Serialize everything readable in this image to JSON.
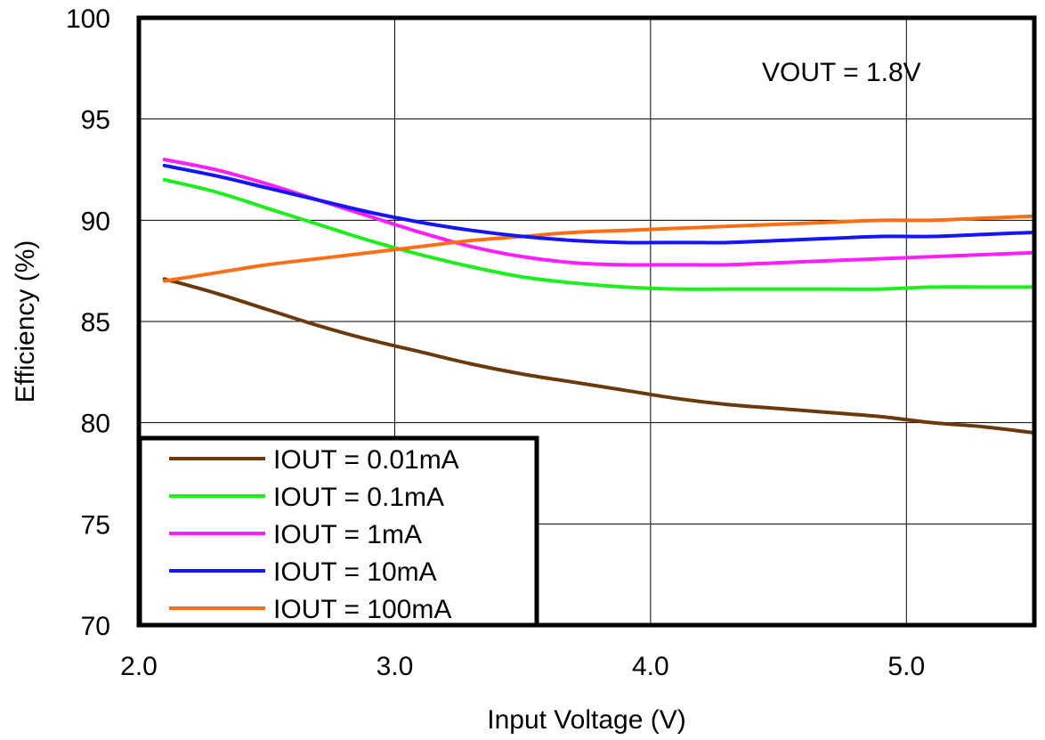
{
  "chart_data": {
    "type": "line",
    "xlabel": "Input Voltage (V)",
    "ylabel": "Efficiency (%)",
    "xlim": [
      2.0,
      5.5
    ],
    "ylim": [
      70,
      100
    ],
    "x_ticks": [
      "2.0",
      "3.0",
      "4.0",
      "5.0"
    ],
    "x_tick_values": [
      2.0,
      3.0,
      4.0,
      5.0
    ],
    "y_ticks": [
      "70",
      "75",
      "80",
      "85",
      "90",
      "95",
      "100"
    ],
    "y_tick_values": [
      70,
      75,
      80,
      85,
      90,
      95,
      100
    ],
    "grid": true,
    "legend_position": "bottom-left",
    "annotation": "VOUT = 1.8V",
    "series": [
      {
        "name": "IOUT = 0.01mA",
        "color": "#6b3a0c",
        "x": [
          2.1,
          2.3,
          2.5,
          2.7,
          2.9,
          3.1,
          3.3,
          3.5,
          3.7,
          3.9,
          4.1,
          4.3,
          4.5,
          4.7,
          4.9,
          5.1,
          5.3,
          5.5
        ],
        "y": [
          87.1,
          86.4,
          85.6,
          84.8,
          84.1,
          83.5,
          82.9,
          82.4,
          82.0,
          81.6,
          81.2,
          80.9,
          80.7,
          80.5,
          80.3,
          80.0,
          79.8,
          79.5
        ]
      },
      {
        "name": "IOUT = 0.1mA",
        "color": "#1eee1e",
        "x": [
          2.1,
          2.3,
          2.5,
          2.7,
          2.9,
          3.1,
          3.3,
          3.5,
          3.7,
          3.9,
          4.1,
          4.3,
          4.5,
          4.7,
          4.9,
          5.1,
          5.3,
          5.5
        ],
        "y": [
          92.0,
          91.4,
          90.6,
          89.8,
          89.0,
          88.3,
          87.7,
          87.2,
          86.9,
          86.7,
          86.6,
          86.6,
          86.6,
          86.6,
          86.6,
          86.7,
          86.7,
          86.7
        ]
      },
      {
        "name": "IOUT = 1mA",
        "color": "#ff1eff",
        "x": [
          2.1,
          2.3,
          2.5,
          2.7,
          2.9,
          3.1,
          3.3,
          3.5,
          3.7,
          3.9,
          4.1,
          4.3,
          4.5,
          4.7,
          4.9,
          5.1,
          5.3,
          5.5
        ],
        "y": [
          93.0,
          92.5,
          91.8,
          91.0,
          90.2,
          89.4,
          88.7,
          88.2,
          87.9,
          87.8,
          87.8,
          87.8,
          87.9,
          88.0,
          88.1,
          88.2,
          88.3,
          88.4
        ]
      },
      {
        "name": "IOUT = 10mA",
        "color": "#1414ff",
        "x": [
          2.1,
          2.3,
          2.5,
          2.7,
          2.9,
          3.1,
          3.3,
          3.5,
          3.7,
          3.9,
          4.1,
          4.3,
          4.5,
          4.7,
          4.9,
          5.1,
          5.3,
          5.5
        ],
        "y": [
          92.7,
          92.2,
          91.6,
          91.0,
          90.4,
          89.9,
          89.5,
          89.2,
          89.0,
          88.9,
          88.9,
          88.9,
          89.0,
          89.1,
          89.2,
          89.2,
          89.3,
          89.4
        ]
      },
      {
        "name": "IOUT = 100mA",
        "color": "#ff6e14",
        "x": [
          2.1,
          2.3,
          2.5,
          2.7,
          2.9,
          3.1,
          3.3,
          3.5,
          3.7,
          3.9,
          4.1,
          4.3,
          4.5,
          4.7,
          4.9,
          5.1,
          5.3,
          5.5
        ],
        "y": [
          87.0,
          87.4,
          87.8,
          88.1,
          88.4,
          88.7,
          89.0,
          89.2,
          89.4,
          89.5,
          89.6,
          89.7,
          89.8,
          89.9,
          90.0,
          90.0,
          90.1,
          90.2
        ]
      }
    ]
  }
}
